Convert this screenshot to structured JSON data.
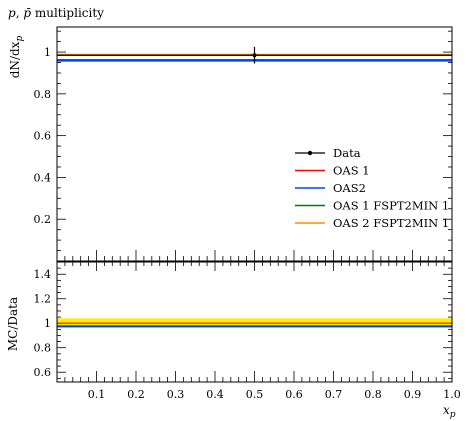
{
  "chart_data": {
    "type": "line",
    "title": "p, p̄ multiplicity",
    "title_parts": [
      "p",
      ", ",
      "p̄",
      " multiplicity"
    ],
    "xlabel": "x_p",
    "xlabel_parts": [
      "x",
      "p"
    ],
    "main": {
      "ylabel": "dN/dx_p",
      "ylabel_parts": [
        "dN/dx",
        "p"
      ],
      "xlim": [
        0.0,
        1.0
      ],
      "ylim": [
        0.0,
        1.12
      ],
      "yticks": [
        0.2,
        0.4,
        0.6,
        0.8,
        1.0
      ],
      "ytick_labels": [
        "0.2",
        "0.4",
        "0.6",
        "0.8",
        "1"
      ],
      "data": {
        "name": "Data",
        "x": 0.5,
        "y": 0.985,
        "yerr": 0.04,
        "xerr": 0.5,
        "color": "#000000"
      },
      "series": [
        {
          "name": "OAS 1",
          "color": "#ff0000",
          "x": [
            0.0,
            1.0
          ],
          "y": [
            0.963,
            0.963
          ]
        },
        {
          "name": "OAS2",
          "color": "#0044ff",
          "x": [
            0.0,
            1.0
          ],
          "y": [
            0.958,
            0.958
          ]
        },
        {
          "name": "OAS 1 FSPT2MIN 1",
          "color": "#007a00",
          "x": [
            0.0,
            1.0
          ],
          "y": [
            0.985,
            0.985
          ]
        },
        {
          "name": "OAS 2 FSPT2MIN 1",
          "color": "#ff8c00",
          "x": [
            0.0,
            1.0
          ],
          "y": [
            0.988,
            0.988
          ]
        }
      ],
      "legend_position": "center-right"
    },
    "ratio": {
      "ylabel": "MC/Data",
      "xlim": [
        0.0,
        1.0
      ],
      "ylim": [
        0.52,
        1.5
      ],
      "yticks": [
        0.6,
        0.8,
        1.0,
        1.2,
        1.4
      ],
      "ytick_labels": [
        "0.6",
        "0.8",
        "1",
        "1.2",
        "1.4"
      ],
      "band": {
        "low": 0.96,
        "high": 1.04,
        "color": "#ffee00"
      },
      "series": [
        {
          "name": "OAS 1",
          "color": "#ff0000",
          "y": 0.978
        },
        {
          "name": "OAS2",
          "color": "#0044ff",
          "y": 0.973
        },
        {
          "name": "OAS 1 FSPT2MIN 1",
          "color": "#007a00",
          "y": 1.0
        },
        {
          "name": "OAS 2 FSPT2MIN 1",
          "color": "#ff8c00",
          "y": 1.003
        }
      ]
    },
    "xticks": [
      0.1,
      0.2,
      0.3,
      0.4,
      0.5,
      0.6,
      0.7,
      0.8,
      0.9,
      1.0
    ],
    "xtick_labels": [
      "0.1",
      "0.2",
      "0.3",
      "0.4",
      "0.5",
      "0.6",
      "0.7",
      "0.8",
      "0.9",
      "1.0"
    ]
  }
}
